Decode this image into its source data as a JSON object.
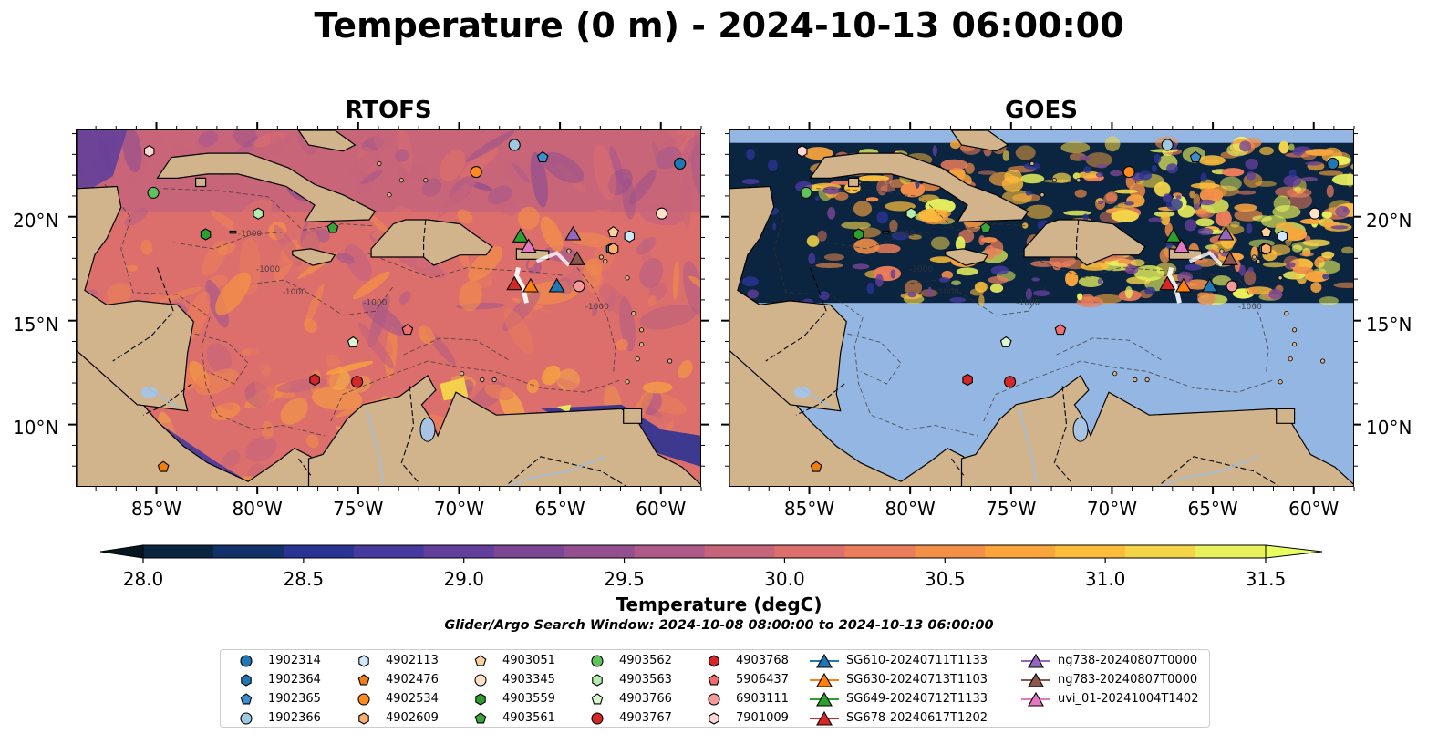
{
  "title": "Temperature (0 m) - 2024-10-13 06:00:00",
  "panels": [
    {
      "title": "RTOFS",
      "kind": "model"
    },
    {
      "title": "GOES",
      "kind": "satellite"
    }
  ],
  "axes": {
    "lat_ticks": [
      "20°N",
      "15°N",
      "10°N"
    ],
    "lon_ticks": [
      "85°W",
      "80°W",
      "75°W",
      "70°W",
      "65°W",
      "60°W"
    ],
    "lon_range": [
      -89,
      -58
    ],
    "lat_range": [
      7,
      24.2
    ]
  },
  "contour_label": "-1000",
  "colorbar": {
    "label": "Temperature (degC)",
    "min": 28.0,
    "max": 31.5,
    "step": 0.25,
    "ticks": [
      "28.0",
      "28.5",
      "29.0",
      "29.5",
      "30.0",
      "30.5",
      "31.0",
      "31.5"
    ],
    "colors": [
      "#0b2540",
      "#12306a",
      "#2a3393",
      "#473a9e",
      "#623f9a",
      "#7b4694",
      "#944f8f",
      "#ad5a88",
      "#c6647b",
      "#dc6f6c",
      "#eb7d5a",
      "#f48f47",
      "#f9a53c",
      "#fbbd3b",
      "#f4d54a",
      "#e9f25c"
    ],
    "over_color": "#e9ff5f",
    "under_color": "#04161f"
  },
  "search_window": "Glider/Argo Search Window: 2024-10-08 08:00:00 to 2024-10-13 06:00:00",
  "land_color": "#d2b48c",
  "missing_color": "#94b6e2",
  "legend_items": [
    {
      "label": "1902314",
      "marker": "circle",
      "color": "#1f77b4"
    },
    {
      "label": "1902364",
      "marker": "hexagon",
      "color": "#1f77b4"
    },
    {
      "label": "1902365",
      "marker": "pentagon",
      "color": "#3a8fd0"
    },
    {
      "label": "1902366",
      "marker": "circle",
      "color": "#9ecae1"
    },
    {
      "label": "4902113",
      "marker": "hexagon",
      "color": "#cfe8fb"
    },
    {
      "label": "4902476",
      "marker": "pentagon",
      "color": "#f07f0e"
    },
    {
      "label": "4902534",
      "marker": "circle",
      "color": "#ff8c1a"
    },
    {
      "label": "4902609",
      "marker": "hexagon",
      "color": "#fdae6b"
    },
    {
      "label": "4903051",
      "marker": "pentagon",
      "color": "#fdd0a2"
    },
    {
      "label": "4903345",
      "marker": "circle",
      "color": "#fde2c9"
    },
    {
      "label": "4903559",
      "marker": "hexagon",
      "color": "#2ca02c"
    },
    {
      "label": "4903561",
      "marker": "pentagon",
      "color": "#3aa53a"
    },
    {
      "label": "4903562",
      "marker": "circle",
      "color": "#5fc25f"
    },
    {
      "label": "4903563",
      "marker": "hexagon",
      "color": "#b7ecb0"
    },
    {
      "label": "4903766",
      "marker": "pentagon",
      "color": "#d9f8d2"
    },
    {
      "label": "4903767",
      "marker": "circle",
      "color": "#d62728"
    },
    {
      "label": "4903768",
      "marker": "hexagon",
      "color": "#d62728"
    },
    {
      "label": "5906437",
      "marker": "pentagon",
      "color": "#f06e6e"
    },
    {
      "label": "6903111",
      "marker": "circle",
      "color": "#f59a9a"
    },
    {
      "label": "7901009",
      "marker": "hexagon",
      "color": "#fcd5d5"
    },
    {
      "label": "SG610-20240711T1133",
      "marker": "triangle",
      "color": "#1f77b4"
    },
    {
      "label": "SG630-20240713T1103",
      "marker": "triangle",
      "color": "#ff7f0e"
    },
    {
      "label": "SG649-20240712T1133",
      "marker": "triangle",
      "color": "#2ca02c"
    },
    {
      "label": "SG678-20240617T1202",
      "marker": "triangle",
      "color": "#d62728"
    },
    {
      "label": "ng738-20240807T0000",
      "marker": "triangle",
      "color": "#9467bd"
    },
    {
      "label": "ng783-20240807T0000",
      "marker": "triangle",
      "color": "#8c564b"
    },
    {
      "label": "uvi_01-20241004T1402",
      "marker": "triangle",
      "color": "#e377c2"
    }
  ],
  "map_markers": [
    {
      "label": "1902314",
      "lon": -59.1,
      "lat": 22.6
    },
    {
      "label": "1902364",
      "lon": -62.5,
      "lat": 18.5
    },
    {
      "label": "1902365",
      "lon": -65.9,
      "lat": 22.9
    },
    {
      "label": "1902366",
      "lon": -67.3,
      "lat": 23.5
    },
    {
      "label": "4902113",
      "lon": -61.6,
      "lat": 19.1
    },
    {
      "label": "4902476",
      "lon": -84.7,
      "lat": 8.0
    },
    {
      "label": "4902534",
      "lon": -69.2,
      "lat": 22.2
    },
    {
      "label": "4902609",
      "lon": -62.4,
      "lat": 18.5
    },
    {
      "label": "4903051",
      "lon": -62.4,
      "lat": 19.3
    },
    {
      "label": "4903345",
      "lon": -60.0,
      "lat": 20.2
    },
    {
      "label": "4903559",
      "lon": -82.6,
      "lat": 19.2
    },
    {
      "label": "4903561",
      "lon": -76.3,
      "lat": 19.5
    },
    {
      "label": "4903562",
      "lon": -85.2,
      "lat": 21.2
    },
    {
      "label": "4903563",
      "lon": -80.0,
      "lat": 20.2
    },
    {
      "label": "4903766",
      "lon": -75.3,
      "lat": 14.0
    },
    {
      "label": "4903767",
      "lon": -75.1,
      "lat": 12.1
    },
    {
      "label": "4903768",
      "lon": -77.2,
      "lat": 12.2
    },
    {
      "label": "5906437",
      "lon": -72.6,
      "lat": 14.6
    },
    {
      "label": "6903111",
      "lon": -64.1,
      "lat": 16.7
    },
    {
      "label": "7901009",
      "lon": -85.4,
      "lat": 23.2
    },
    {
      "label": "SG610-20240711T1133",
      "lon": -65.2,
      "lat": 16.7
    },
    {
      "label": "SG630-20240713T1103",
      "lon": -66.5,
      "lat": 16.7
    },
    {
      "label": "SG649-20240712T1133",
      "lon": -67.0,
      "lat": 19.1
    },
    {
      "label": "SG678-20240617T1202",
      "lon": -67.3,
      "lat": 16.8
    },
    {
      "label": "ng738-20240807T0000",
      "lon": -64.4,
      "lat": 19.2
    },
    {
      "label": "ng783-20240807T0000",
      "lon": -64.2,
      "lat": 18.0
    },
    {
      "label": "uvi_01-20241004T1402",
      "lon": -66.6,
      "lat": 18.6
    }
  ]
}
